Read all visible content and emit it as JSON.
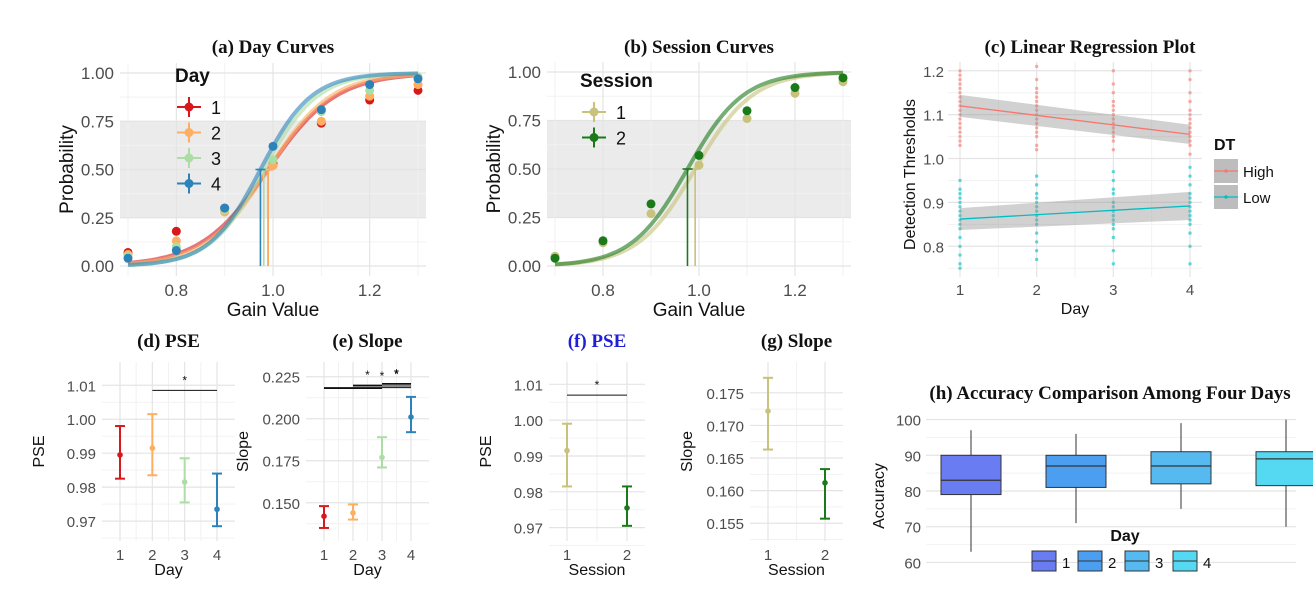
{
  "colors": {
    "day": [
      "#d7191c",
      "#fdae61",
      "#abdda4",
      "#2b83ba"
    ],
    "session": [
      "#c8c27c",
      "#1a7a1a"
    ],
    "dt": [
      "#f8766d",
      "#00bfc4"
    ],
    "box": [
      "#6a7cf2",
      "#4c9ef0",
      "#56b9ef",
      "#55d8f2"
    ]
  },
  "chart_data": [
    {
      "id": "a",
      "type": "line",
      "title": "(a) Day Curves",
      "xlabel": "Gain Value",
      "ylabel": "Probability",
      "xlim": [
        0.7,
        1.3
      ],
      "ylim": [
        0,
        1
      ],
      "xticks": [
        "0.8",
        "1.0",
        "1.2"
      ],
      "yticks": [
        "0.00",
        "0.25",
        "0.50",
        "0.75",
        "1.00"
      ],
      "band": [
        0.25,
        0.75
      ],
      "legend_title": "Day",
      "x": [
        0.7,
        0.8,
        0.9,
        1.0,
        1.1,
        1.2,
        1.3
      ],
      "series": [
        {
          "name": "1",
          "values": [
            0.07,
            0.18,
            0.3,
            0.53,
            0.74,
            0.86,
            0.91
          ],
          "pse": 0.99,
          "slope": 6.5
        },
        {
          "name": "2",
          "values": [
            0.06,
            0.13,
            0.28,
            0.52,
            0.75,
            0.88,
            0.94
          ],
          "pse": 0.99,
          "slope": 7.0
        },
        {
          "name": "3",
          "values": [
            0.05,
            0.1,
            0.29,
            0.55,
            0.8,
            0.91,
            0.98
          ],
          "pse": 0.981,
          "slope": 8.2
        },
        {
          "name": "4",
          "values": [
            0.04,
            0.08,
            0.3,
            0.62,
            0.81,
            0.94,
            0.97
          ],
          "pse": 0.974,
          "slope": 8.6
        }
      ]
    },
    {
      "id": "b",
      "type": "line",
      "title": "(b) Session Curves",
      "xlabel": "Gain Value",
      "ylabel": "Probability",
      "xlim": [
        0.7,
        1.3
      ],
      "ylim": [
        0,
        1
      ],
      "xticks": [
        "0.8",
        "1.0",
        "1.2"
      ],
      "yticks": [
        "0.00",
        "0.25",
        "0.50",
        "0.75",
        "1.00"
      ],
      "band": [
        0.25,
        0.75
      ],
      "legend_title": "Session",
      "x": [
        0.7,
        0.8,
        0.9,
        1.0,
        1.1,
        1.2,
        1.3
      ],
      "series": [
        {
          "name": "1",
          "values": [
            0.05,
            0.12,
            0.27,
            0.52,
            0.76,
            0.89,
            0.95
          ],
          "pse": 0.992,
          "slope": 7.6
        },
        {
          "name": "2",
          "values": [
            0.04,
            0.13,
            0.32,
            0.57,
            0.8,
            0.92,
            0.97
          ],
          "pse": 0.976,
          "slope": 7.8
        }
      ]
    },
    {
      "id": "c",
      "type": "scatter",
      "title": "(c) Linear Regression Plot",
      "xlabel": "Day",
      "ylabel": "Detection Thresholds",
      "xlim": [
        1,
        4
      ],
      "ylim": [
        0.73,
        1.22
      ],
      "xticks": [
        "1",
        "2",
        "3",
        "4"
      ],
      "yticks": [
        "0.8",
        "0.9",
        "1.0",
        "1.1",
        "1.2"
      ],
      "legend_title": "DT",
      "series": [
        {
          "name": "High",
          "fit_start": 1.12,
          "fit_end": 1.055,
          "ci_start": 0.025,
          "ci_end": 0.022,
          "points": [
            [
              1,
              1.2
            ],
            [
              1,
              1.19
            ],
            [
              1,
              1.18
            ],
            [
              1,
              1.17
            ],
            [
              1,
              1.16
            ],
            [
              1,
              1.15
            ],
            [
              1,
              1.14
            ],
            [
              1,
              1.13
            ],
            [
              1,
              1.12
            ],
            [
              1,
              1.11
            ],
            [
              1,
              1.1
            ],
            [
              1,
              1.09
            ],
            [
              1,
              1.08
            ],
            [
              1,
              1.07
            ],
            [
              1,
              1.06
            ],
            [
              1,
              1.05
            ],
            [
              1,
              1.04
            ],
            [
              1,
              1.03
            ],
            [
              2,
              1.21
            ],
            [
              2,
              1.18
            ],
            [
              2,
              1.16
            ],
            [
              2,
              1.15
            ],
            [
              2,
              1.14
            ],
            [
              2,
              1.13
            ],
            [
              2,
              1.12
            ],
            [
              2,
              1.11
            ],
            [
              2,
              1.1
            ],
            [
              2,
              1.09
            ],
            [
              2,
              1.08
            ],
            [
              2,
              1.07
            ],
            [
              2,
              1.06
            ],
            [
              2,
              1.05
            ],
            [
              2,
              1.03
            ],
            [
              2,
              1.02
            ],
            [
              3,
              1.2
            ],
            [
              3,
              1.17
            ],
            [
              3,
              1.15
            ],
            [
              3,
              1.13
            ],
            [
              3,
              1.12
            ],
            [
              3,
              1.11
            ],
            [
              3,
              1.1
            ],
            [
              3,
              1.09
            ],
            [
              3,
              1.08
            ],
            [
              3,
              1.07
            ],
            [
              3,
              1.06
            ],
            [
              3,
              1.05
            ],
            [
              3,
              1.04
            ],
            [
              3,
              1.02
            ],
            [
              4,
              1.2
            ],
            [
              4,
              1.18
            ],
            [
              4,
              1.15
            ],
            [
              4,
              1.13
            ],
            [
              4,
              1.11
            ],
            [
              4,
              1.1
            ],
            [
              4,
              1.09
            ],
            [
              4,
              1.08
            ],
            [
              4,
              1.07
            ],
            [
              4,
              1.06
            ],
            [
              4,
              1.05
            ],
            [
              4,
              1.04
            ],
            [
              4,
              1.03
            ],
            [
              4,
              1.01
            ]
          ]
        },
        {
          "name": "Low",
          "fit_start": 0.862,
          "fit_end": 0.892,
          "ci_start": 0.025,
          "ci_end": 0.032,
          "points": [
            [
              1,
              0.95
            ],
            [
              1,
              0.93
            ],
            [
              1,
              0.92
            ],
            [
              1,
              0.91
            ],
            [
              1,
              0.9
            ],
            [
              1,
              0.89
            ],
            [
              1,
              0.88
            ],
            [
              1,
              0.87
            ],
            [
              1,
              0.86
            ],
            [
              1,
              0.85
            ],
            [
              1,
              0.84
            ],
            [
              1,
              0.82
            ],
            [
              1,
              0.8
            ],
            [
              1,
              0.78
            ],
            [
              1,
              0.76
            ],
            [
              1,
              0.75
            ],
            [
              2,
              0.96
            ],
            [
              2,
              0.94
            ],
            [
              2,
              0.92
            ],
            [
              2,
              0.91
            ],
            [
              2,
              0.9
            ],
            [
              2,
              0.89
            ],
            [
              2,
              0.88
            ],
            [
              2,
              0.87
            ],
            [
              2,
              0.86
            ],
            [
              2,
              0.85
            ],
            [
              2,
              0.83
            ],
            [
              2,
              0.81
            ],
            [
              2,
              0.79
            ],
            [
              2,
              0.77
            ],
            [
              3,
              0.97
            ],
            [
              3,
              0.95
            ],
            [
              3,
              0.93
            ],
            [
              3,
              0.92
            ],
            [
              3,
              0.9
            ],
            [
              3,
              0.89
            ],
            [
              3,
              0.88
            ],
            [
              3,
              0.87
            ],
            [
              3,
              0.86
            ],
            [
              3,
              0.85
            ],
            [
              3,
              0.84
            ],
            [
              3,
              0.82
            ],
            [
              3,
              0.79
            ],
            [
              3,
              0.76
            ],
            [
              4,
              0.98
            ],
            [
              4,
              0.96
            ],
            [
              4,
              0.94
            ],
            [
              4,
              0.92
            ],
            [
              4,
              0.91
            ],
            [
              4,
              0.9
            ],
            [
              4,
              0.89
            ],
            [
              4,
              0.88
            ],
            [
              4,
              0.87
            ],
            [
              4,
              0.86
            ],
            [
              4,
              0.85
            ],
            [
              4,
              0.83
            ],
            [
              4,
              0.8
            ],
            [
              4,
              0.76
            ]
          ]
        }
      ]
    },
    {
      "id": "d",
      "type": "errorbar",
      "title": "(d) PSE",
      "xlabel": "Day",
      "ylabel": "PSE",
      "ylim": [
        0.9665,
        1.0145
      ],
      "categories": [
        "1",
        "2",
        "3",
        "4"
      ],
      "yticks": [
        "0.97",
        "0.98",
        "0.99",
        "1.00",
        "1.01"
      ],
      "values": [
        0.9895,
        0.9915,
        0.9815,
        0.9735
      ],
      "lower": [
        0.9825,
        0.9835,
        0.9755,
        0.9685
      ],
      "upper": [
        0.998,
        1.0015,
        0.9885,
        0.984
      ],
      "significance": [
        {
          "from": 1,
          "to": 3,
          "y": 1.0085,
          "label": "*"
        }
      ]
    },
    {
      "id": "e",
      "type": "errorbar",
      "title": "(e) Slope",
      "xlabel": "Day",
      "ylabel": "Slope",
      "ylim": [
        0.132,
        0.229
      ],
      "categories": [
        "1",
        "2",
        "3",
        "4"
      ],
      "yticks": [
        "0.150",
        "0.175",
        "0.200",
        "0.225"
      ],
      "values": [
        0.142,
        0.144,
        0.177,
        0.201
      ],
      "lower": [
        0.135,
        0.14,
        0.171,
        0.192
      ],
      "upper": [
        0.148,
        0.149,
        0.189,
        0.213
      ],
      "significance": [
        {
          "from": 0,
          "to": 3,
          "y": 0.2185,
          "label": ""
        },
        {
          "from": 0,
          "to": 2,
          "y": 0.218,
          "label": ""
        },
        {
          "from": 1,
          "to": 3,
          "y": 0.2195,
          "label": "*"
        },
        {
          "from": 1,
          "to": 2,
          "y": 0.22,
          "label": "*"
        },
        {
          "from": 2,
          "to": 3,
          "y": 0.2205,
          "label": "*"
        },
        {
          "from": 2,
          "to": 3,
          "y": 0.221,
          "label": "*"
        }
      ]
    },
    {
      "id": "f",
      "type": "errorbar",
      "title": "(f) PSE",
      "xlabel": "Session",
      "ylabel": "PSE",
      "ylim": [
        0.9685,
        1.014
      ],
      "categories": [
        "1",
        "2"
      ],
      "yticks": [
        "0.97",
        "0.98",
        "0.99",
        "1.00",
        "1.01"
      ],
      "values": [
        0.9915,
        0.9755
      ],
      "lower": [
        0.9815,
        0.9705
      ],
      "upper": [
        0.999,
        0.9815
      ],
      "significance": [
        {
          "from": 0,
          "to": 1,
          "y": 1.007,
          "label": "*"
        }
      ]
    },
    {
      "id": "g",
      "type": "errorbar",
      "title": "(g) Slope",
      "xlabel": "Session",
      "ylabel": "Slope",
      "ylim": [
        0.1535,
        0.1785
      ],
      "categories": [
        "1",
        "2"
      ],
      "yticks": [
        "0.155",
        "0.160",
        "0.165",
        "0.170",
        "0.175"
      ],
      "values": [
        0.1722,
        0.1612
      ],
      "lower": [
        0.1663,
        0.1557
      ],
      "upper": [
        0.1773,
        0.1633
      ],
      "significance": []
    },
    {
      "id": "h",
      "type": "boxplot",
      "title": "(h) Accuracy Comparison Among Four Days",
      "ylabel": "Accuracy",
      "ylim": [
        59,
        101
      ],
      "yticks": [
        "60",
        "70",
        "80",
        "90",
        "100"
      ],
      "legend_title": "Day",
      "categories": [
        "1",
        "2",
        "3",
        "4"
      ],
      "boxes": [
        {
          "min": 63,
          "q1": 79,
          "median": 83,
          "q3": 90,
          "max": 97
        },
        {
          "min": 71,
          "q1": 81,
          "median": 87,
          "q3": 90,
          "max": 96
        },
        {
          "min": 75,
          "q1": 82,
          "median": 87,
          "q3": 91,
          "max": 99
        },
        {
          "min": 70,
          "q1": 81.5,
          "median": 89,
          "q3": 91,
          "max": 100
        }
      ]
    }
  ]
}
